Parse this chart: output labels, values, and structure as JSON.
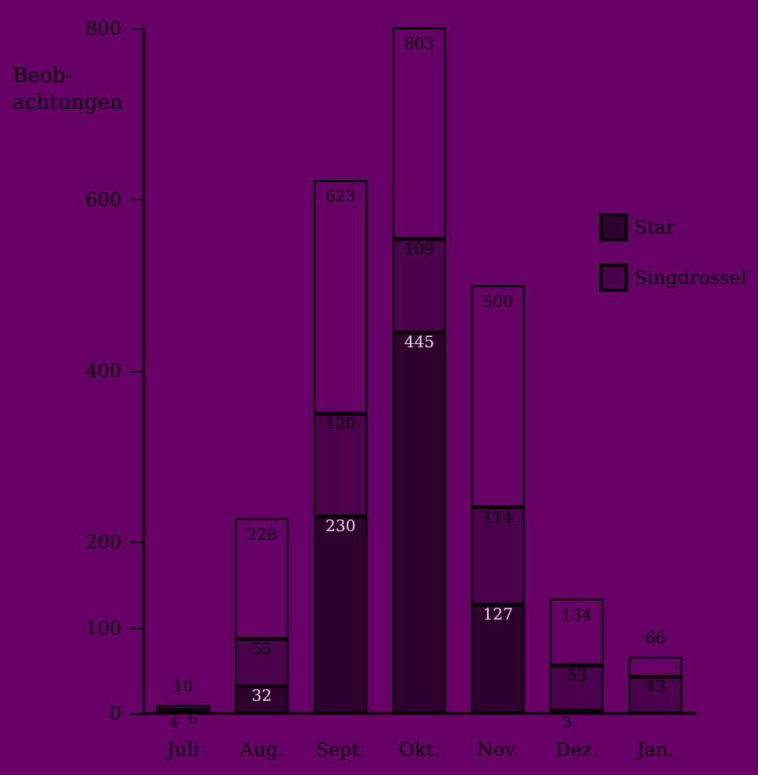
{
  "chart_data": {
    "type": "bar",
    "stacked": true,
    "ylabel": "Beob-\nachtungen",
    "categories": [
      "Juli",
      "Aug.",
      "Sept.",
      "Okt.",
      "Nov.",
      "Dez.",
      "Jan."
    ],
    "series": [
      {
        "name": "Star",
        "color": "#2e002e",
        "values": [
          4,
          32,
          230,
          445,
          127,
          3,
          null
        ],
        "value_labels": [
          "4",
          "32",
          "230",
          "445",
          "127",
          "3",
          null
        ]
      },
      {
        "name": "Singdrossel",
        "color": "#4a004a",
        "values": [
          6,
          55,
          120,
          109,
          114,
          53,
          43
        ],
        "value_labels": [
          "6",
          "55",
          "120",
          "109",
          "114",
          "53",
          "43"
        ]
      },
      {
        "color": "#660066",
        "values": [
          0,
          141,
          273,
          249,
          259,
          78,
          23
        ]
      }
    ],
    "totals": [
      "10",
      "228",
      "623",
      "803",
      "500",
      "134",
      "66"
    ],
    "ylim": [
      0,
      800
    ],
    "yticks": [
      0,
      100,
      200,
      400,
      600,
      800
    ],
    "grid": false,
    "legend": "top right"
  }
}
